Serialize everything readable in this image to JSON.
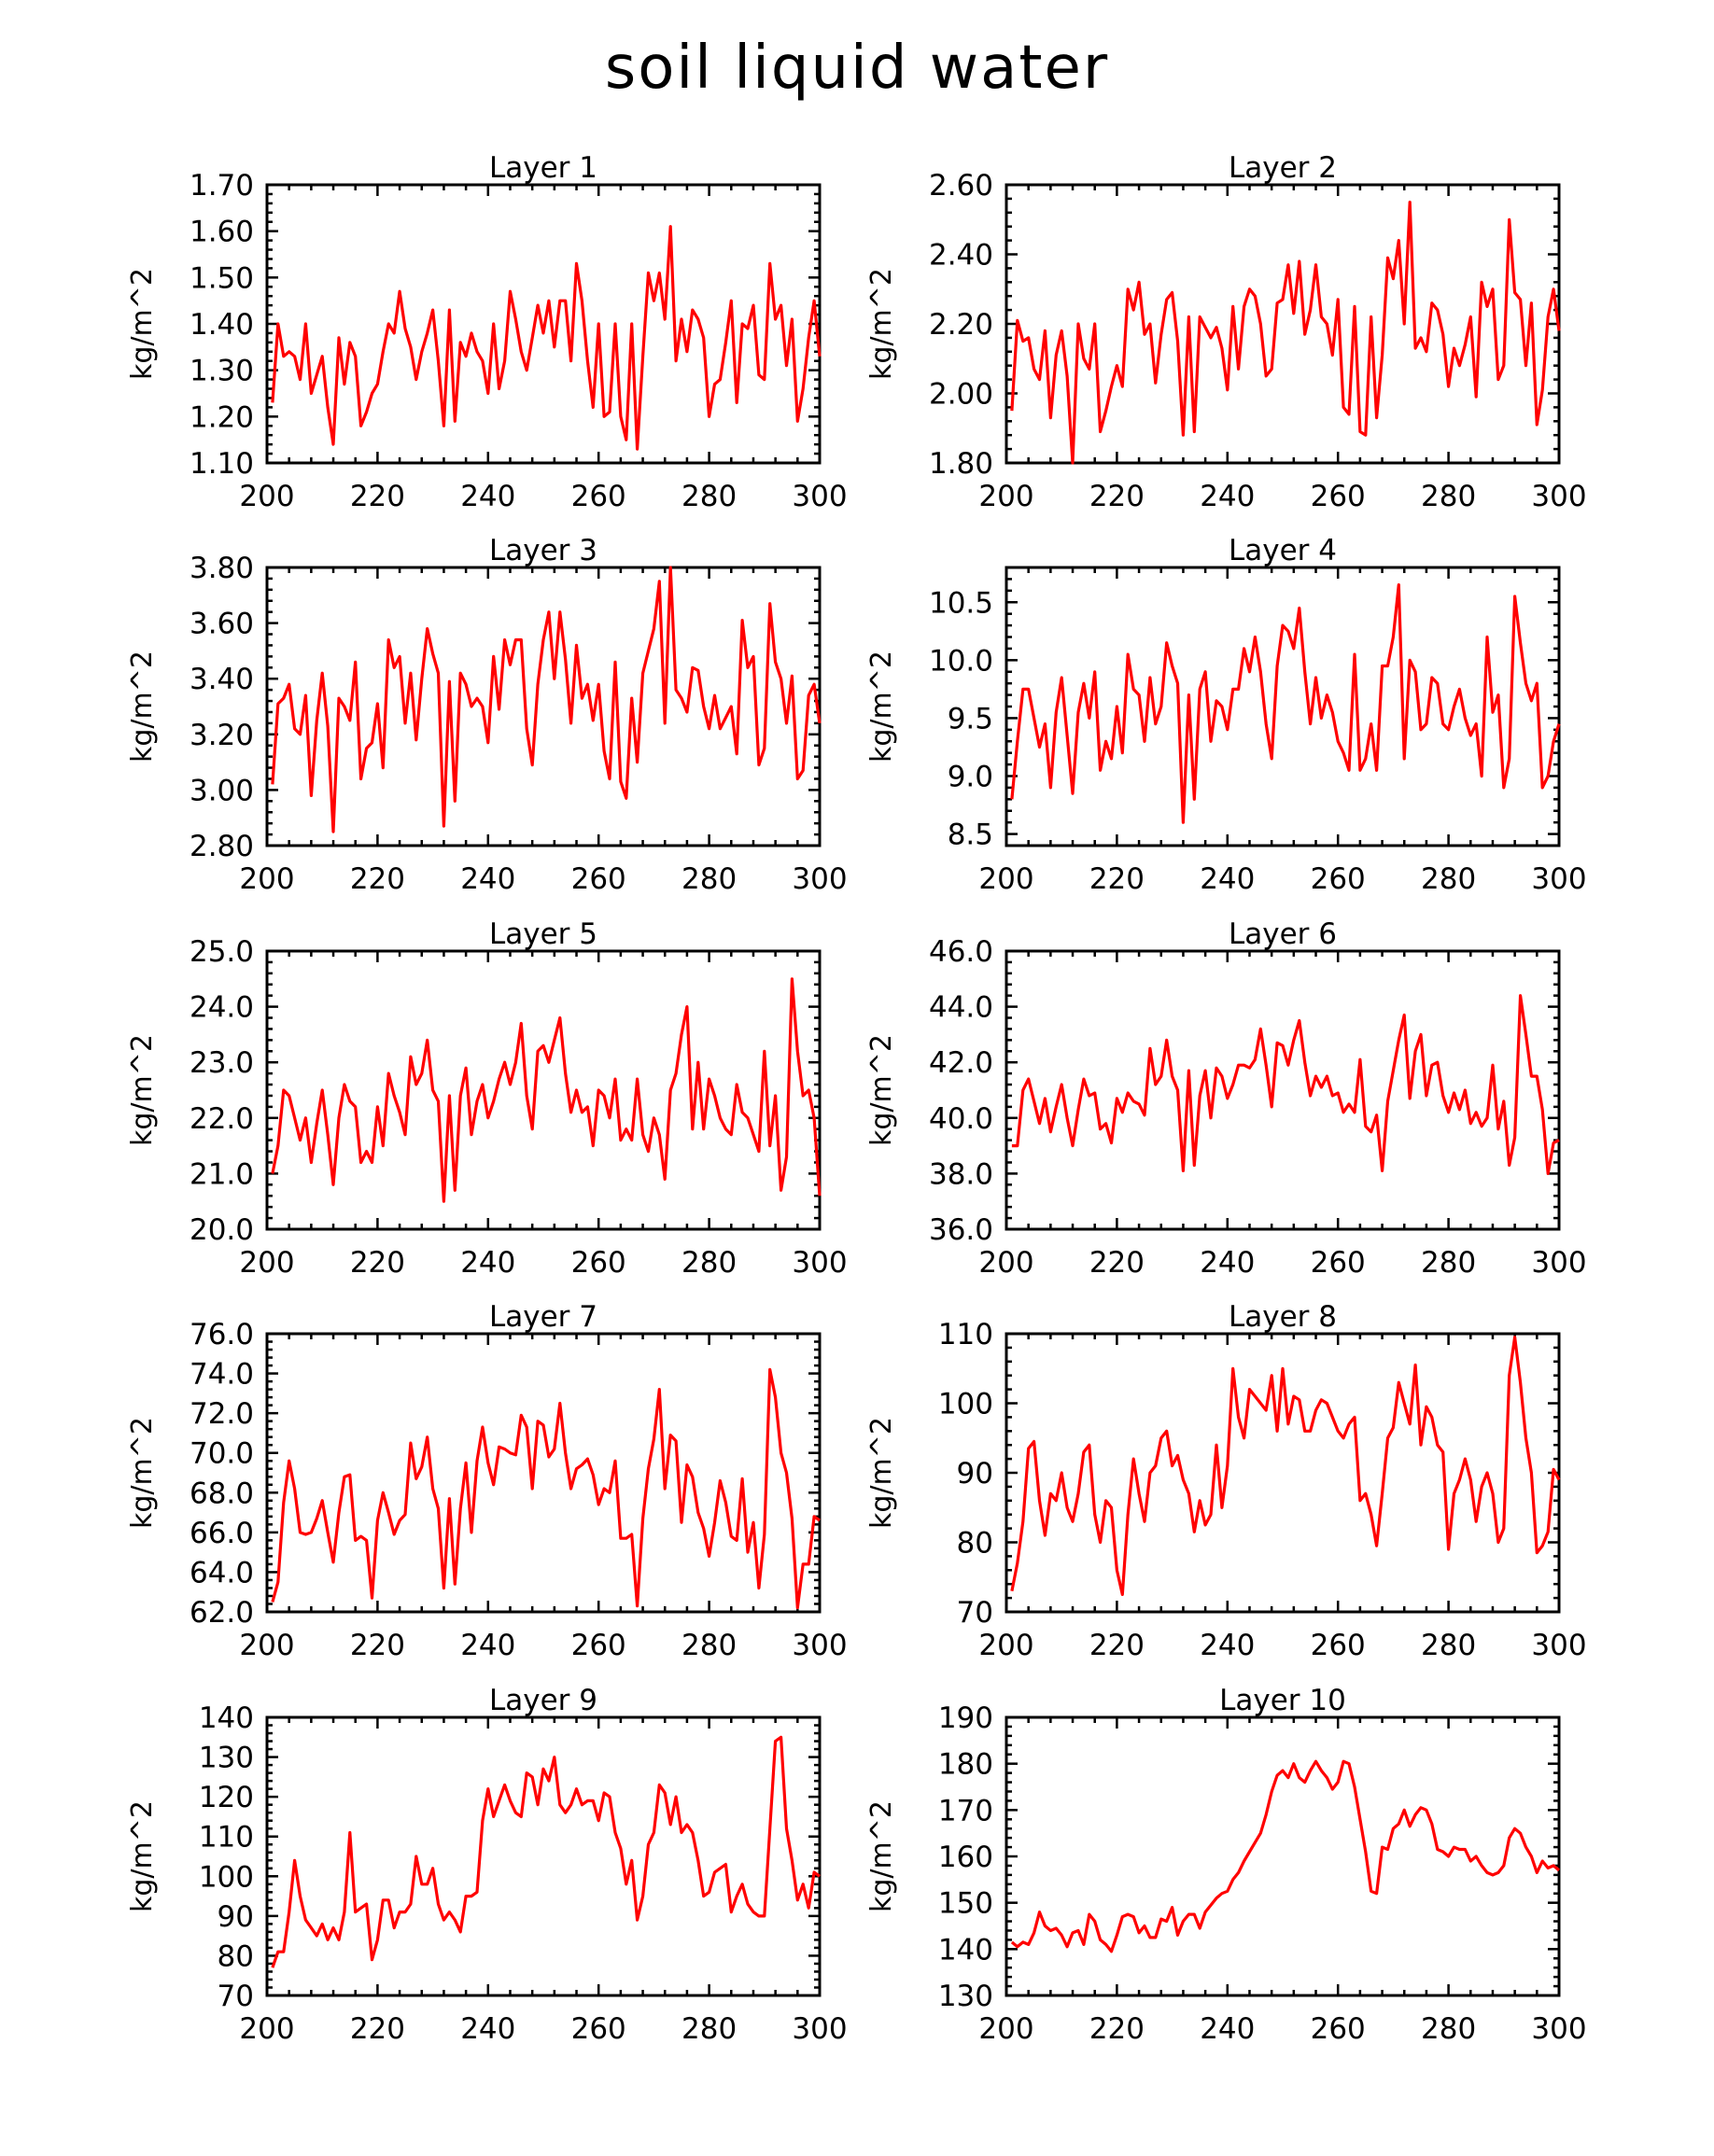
{
  "figure": {
    "title": "soil liquid water"
  },
  "chart_data": [
    {
      "type": "line",
      "title": "Layer 1",
      "ylabel": "kg/m^2",
      "xlim": [
        200,
        300
      ],
      "ylim": [
        1.1,
        1.7
      ],
      "xticks": [
        "200",
        "220",
        "240",
        "260",
        "280",
        "300"
      ],
      "yticks": [
        "1.10",
        "1.20",
        "1.30",
        "1.40",
        "1.50",
        "1.60",
        "1.70"
      ],
      "x_start": 201,
      "x_step": 1,
      "values": [
        1.23,
        1.4,
        1.33,
        1.34,
        1.33,
        1.28,
        1.4,
        1.25,
        1.29,
        1.33,
        1.22,
        1.14,
        1.37,
        1.27,
        1.36,
        1.33,
        1.18,
        1.21,
        1.25,
        1.27,
        1.34,
        1.4,
        1.38,
        1.47,
        1.39,
        1.35,
        1.28,
        1.34,
        1.38,
        1.43,
        1.32,
        1.18,
        1.43,
        1.19,
        1.36,
        1.33,
        1.38,
        1.34,
        1.32,
        1.25,
        1.4,
        1.26,
        1.32,
        1.47,
        1.41,
        1.34,
        1.3,
        1.37,
        1.44,
        1.38,
        1.45,
        1.35,
        1.45,
        1.45,
        1.32,
        1.53,
        1.45,
        1.32,
        1.22,
        1.4,
        1.2,
        1.21,
        1.4,
        1.2,
        1.15,
        1.4,
        1.13,
        1.33,
        1.51,
        1.45,
        1.51,
        1.41,
        1.61,
        1.32,
        1.41,
        1.34,
        1.43,
        1.41,
        1.37,
        1.2,
        1.27,
        1.28,
        1.36,
        1.45,
        1.23,
        1.4,
        1.39,
        1.44,
        1.29,
        1.28,
        1.53,
        1.41,
        1.44,
        1.31,
        1.41,
        1.19,
        1.26,
        1.37,
        1.45,
        1.33
      ]
    },
    {
      "type": "line",
      "title": "Layer 2",
      "ylabel": "kg/m^2",
      "xlim": [
        200,
        300
      ],
      "ylim": [
        1.8,
        2.6
      ],
      "xticks": [
        "200",
        "220",
        "240",
        "260",
        "280",
        "300"
      ],
      "yticks": [
        "1.80",
        "2.00",
        "2.20",
        "2.40",
        "2.60"
      ],
      "x_start": 201,
      "x_step": 1,
      "values": [
        1.95,
        2.21,
        2.15,
        2.16,
        2.07,
        2.04,
        2.18,
        1.93,
        2.11,
        2.18,
        2.05,
        1.8,
        2.2,
        2.1,
        2.07,
        2.2,
        1.89,
        1.95,
        2.02,
        2.08,
        2.02,
        2.3,
        2.24,
        2.32,
        2.17,
        2.2,
        2.03,
        2.17,
        2.27,
        2.29,
        2.15,
        1.88,
        2.22,
        1.89,
        2.22,
        2.19,
        2.16,
        2.19,
        2.13,
        2.01,
        2.25,
        2.07,
        2.25,
        2.3,
        2.28,
        2.2,
        2.05,
        2.07,
        2.26,
        2.27,
        2.37,
        2.23,
        2.38,
        2.17,
        2.24,
        2.37,
        2.22,
        2.2,
        2.11,
        2.27,
        1.96,
        1.94,
        2.25,
        1.89,
        1.88,
        2.22,
        1.93,
        2.11,
        2.39,
        2.33,
        2.44,
        2.2,
        2.55,
        2.13,
        2.16,
        2.12,
        2.26,
        2.24,
        2.17,
        2.02,
        2.13,
        2.08,
        2.14,
        2.22,
        1.99,
        2.32,
        2.25,
        2.3,
        2.04,
        2.08,
        2.5,
        2.29,
        2.27,
        2.08,
        2.26,
        1.91,
        2.01,
        2.22,
        2.3,
        2.18
      ]
    },
    {
      "type": "line",
      "title": "Layer 3",
      "ylabel": "kg/m^2",
      "xlim": [
        200,
        300
      ],
      "ylim": [
        2.8,
        3.8
      ],
      "xticks": [
        "200",
        "220",
        "240",
        "260",
        "280",
        "300"
      ],
      "yticks": [
        "2.80",
        "3.00",
        "3.20",
        "3.40",
        "3.60",
        "3.80"
      ],
      "x_start": 201,
      "x_step": 1,
      "values": [
        3.02,
        3.31,
        3.33,
        3.38,
        3.22,
        3.2,
        3.34,
        2.98,
        3.25,
        3.42,
        3.23,
        2.85,
        3.33,
        3.3,
        3.25,
        3.46,
        3.04,
        3.15,
        3.17,
        3.31,
        3.08,
        3.54,
        3.44,
        3.48,
        3.24,
        3.42,
        3.18,
        3.4,
        3.58,
        3.49,
        3.42,
        2.87,
        3.39,
        2.96,
        3.42,
        3.38,
        3.3,
        3.33,
        3.3,
        3.17,
        3.48,
        3.29,
        3.54,
        3.45,
        3.54,
        3.54,
        3.22,
        3.09,
        3.38,
        3.54,
        3.64,
        3.4,
        3.64,
        3.47,
        3.24,
        3.52,
        3.33,
        3.38,
        3.25,
        3.38,
        3.14,
        3.04,
        3.46,
        3.03,
        2.97,
        3.33,
        3.1,
        3.42,
        3.5,
        3.58,
        3.75,
        3.24,
        3.8,
        3.36,
        3.33,
        3.28,
        3.44,
        3.43,
        3.3,
        3.22,
        3.34,
        3.22,
        3.26,
        3.3,
        3.13,
        3.61,
        3.44,
        3.48,
        3.09,
        3.15,
        3.67,
        3.46,
        3.4,
        3.24,
        3.41,
        3.04,
        3.07,
        3.34,
        3.38,
        3.24
      ]
    },
    {
      "type": "line",
      "title": "Layer 4",
      "ylabel": "kg/m^2",
      "xlim": [
        200,
        300
      ],
      "ylim": [
        8.4,
        10.8
      ],
      "xticks": [
        "200",
        "220",
        "240",
        "260",
        "280",
        "300"
      ],
      "yticks": [
        "8.5",
        "9.0",
        "9.5",
        "10.0",
        "10.5"
      ],
      "x_start": 201,
      "x_step": 1,
      "values": [
        8.8,
        9.3,
        9.75,
        9.75,
        9.5,
        9.25,
        9.45,
        8.9,
        9.55,
        9.85,
        9.35,
        8.85,
        9.55,
        9.8,
        9.5,
        9.9,
        9.05,
        9.3,
        9.15,
        9.6,
        9.2,
        10.05,
        9.75,
        9.7,
        9.3,
        9.85,
        9.45,
        9.6,
        10.15,
        9.95,
        9.8,
        8.6,
        9.7,
        8.8,
        9.75,
        9.9,
        9.3,
        9.65,
        9.6,
        9.4,
        9.75,
        9.75,
        10.1,
        9.9,
        10.2,
        9.9,
        9.45,
        9.15,
        9.95,
        10.3,
        10.25,
        10.1,
        10.45,
        9.9,
        9.45,
        9.85,
        9.5,
        9.7,
        9.55,
        9.3,
        9.2,
        9.05,
        10.05,
        9.05,
        9.15,
        9.45,
        9.05,
        9.95,
        9.95,
        10.2,
        10.65,
        9.15,
        10.0,
        9.9,
        9.4,
        9.45,
        9.85,
        9.8,
        9.45,
        9.4,
        9.6,
        9.75,
        9.5,
        9.35,
        9.45,
        9.0,
        10.2,
        9.55,
        9.7,
        8.9,
        9.15,
        10.55,
        10.15,
        9.8,
        9.65,
        9.8,
        8.9,
        9.0,
        9.3,
        9.45
      ]
    },
    {
      "type": "line",
      "title": "Layer 5",
      "ylabel": "kg/m^2",
      "xlim": [
        200,
        300
      ],
      "ylim": [
        20.0,
        25.0
      ],
      "xticks": [
        "200",
        "220",
        "240",
        "260",
        "280",
        "300"
      ],
      "yticks": [
        "20.0",
        "21.0",
        "22.0",
        "23.0",
        "24.0",
        "25.0"
      ],
      "x_start": 201,
      "x_step": 1,
      "values": [
        21.0,
        21.5,
        22.5,
        22.4,
        22.0,
        21.6,
        22.0,
        21.2,
        21.9,
        22.5,
        21.7,
        20.8,
        22.0,
        22.6,
        22.3,
        22.2,
        21.2,
        21.4,
        21.2,
        22.2,
        21.5,
        22.8,
        22.4,
        22.1,
        21.7,
        23.1,
        22.6,
        22.8,
        23.4,
        22.5,
        22.3,
        20.5,
        22.4,
        20.7,
        22.4,
        22.9,
        21.7,
        22.3,
        22.6,
        22.0,
        22.3,
        22.7,
        23.0,
        22.6,
        23.0,
        23.7,
        22.4,
        21.8,
        23.2,
        23.3,
        23.0,
        23.4,
        23.8,
        22.8,
        22.1,
        22.5,
        22.1,
        22.2,
        21.5,
        22.5,
        22.4,
        22.0,
        22.7,
        21.6,
        21.8,
        21.6,
        22.7,
        21.7,
        21.4,
        22.0,
        21.7,
        20.9,
        22.5,
        22.8,
        23.5,
        24.0,
        21.8,
        23.0,
        21.8,
        22.7,
        22.4,
        22.0,
        21.8,
        21.7,
        22.6,
        22.1,
        22.0,
        21.7,
        21.4,
        23.2,
        21.5,
        22.4,
        20.7,
        21.3,
        24.5,
        23.2,
        22.4,
        22.5,
        22.0,
        20.6
      ]
    },
    {
      "type": "line",
      "title": "Layer 6",
      "ylabel": "kg/m^2",
      "xlim": [
        200,
        300
      ],
      "ylim": [
        36.0,
        46.0
      ],
      "xticks": [
        "200",
        "220",
        "240",
        "260",
        "280",
        "300"
      ],
      "yticks": [
        "36.0",
        "38.0",
        "40.0",
        "42.0",
        "44.0",
        "46.0"
      ],
      "x_start": 201,
      "x_step": 1,
      "values": [
        39.0,
        39.0,
        41.0,
        41.4,
        40.6,
        39.8,
        40.7,
        39.5,
        40.4,
        41.2,
        40.0,
        39.0,
        40.3,
        41.4,
        40.8,
        40.9,
        39.6,
        39.8,
        39.1,
        40.7,
        40.2,
        40.9,
        40.6,
        40.5,
        40.1,
        42.5,
        41.2,
        41.5,
        42.8,
        41.5,
        41.0,
        38.1,
        41.7,
        38.3,
        40.8,
        41.7,
        40.0,
        41.8,
        41.5,
        40.7,
        41.2,
        41.9,
        41.9,
        41.8,
        42.1,
        43.2,
        41.9,
        40.4,
        42.7,
        42.6,
        41.9,
        42.8,
        43.5,
        42.0,
        40.8,
        41.5,
        41.1,
        41.5,
        40.8,
        40.9,
        40.2,
        40.5,
        40.2,
        42.1,
        39.7,
        39.5,
        40.1,
        38.1,
        40.6,
        41.7,
        42.8,
        43.7,
        40.7,
        42.4,
        43.0,
        40.8,
        41.9,
        42.0,
        40.8,
        40.2,
        40.9,
        40.3,
        41.0,
        39.8,
        40.2,
        39.7,
        40.0,
        41.9,
        39.6,
        40.6,
        38.3,
        39.3,
        44.4,
        43.0,
        41.5,
        41.5,
        40.3,
        38.0,
        39.1,
        39.2
      ]
    },
    {
      "type": "line",
      "title": "Layer 7",
      "ylabel": "kg/m^2",
      "xlim": [
        200,
        300
      ],
      "ylim": [
        62.0,
        76.0
      ],
      "xticks": [
        "200",
        "220",
        "240",
        "260",
        "280",
        "300"
      ],
      "yticks": [
        "62.0",
        "64.0",
        "66.0",
        "68.0",
        "70.0",
        "72.0",
        "74.0",
        "76.0"
      ],
      "x_start": 201,
      "x_step": 1,
      "values": [
        62.5,
        63.5,
        67.5,
        69.6,
        68.2,
        66.0,
        65.9,
        66.0,
        66.7,
        67.6,
        66.0,
        64.5,
        67.0,
        68.8,
        68.9,
        65.6,
        65.8,
        65.6,
        62.7,
        66.6,
        68.0,
        67.0,
        65.9,
        66.6,
        66.9,
        70.5,
        68.7,
        69.3,
        70.8,
        68.2,
        67.2,
        63.2,
        67.7,
        63.4,
        67.2,
        69.5,
        66.0,
        69.6,
        71.3,
        69.5,
        68.4,
        70.3,
        70.2,
        70.0,
        69.9,
        71.9,
        71.3,
        68.2,
        71.6,
        71.4,
        69.8,
        70.2,
        72.5,
        70.0,
        68.2,
        69.2,
        69.4,
        69.7,
        68.9,
        67.4,
        68.2,
        68.0,
        69.6,
        65.7,
        65.7,
        65.9,
        62.3,
        66.7,
        69.2,
        70.7,
        73.2,
        68.2,
        70.9,
        70.6,
        66.5,
        69.4,
        68.8,
        67.0,
        66.2,
        64.8,
        66.5,
        68.6,
        67.5,
        65.8,
        65.6,
        68.7,
        65.0,
        66.5,
        63.2,
        65.9,
        74.2,
        72.8,
        70.0,
        69.0,
        66.7,
        62.2,
        64.4,
        64.4,
        66.8,
        66.6
      ]
    },
    {
      "type": "line",
      "title": "Layer 8",
      "ylabel": "kg/m^2",
      "xlim": [
        200,
        300
      ],
      "ylim": [
        70,
        110
      ],
      "xticks": [
        "200",
        "220",
        "240",
        "260",
        "280",
        "300"
      ],
      "yticks": [
        "70",
        "80",
        "90",
        "100",
        "110"
      ],
      "x_start": 201,
      "x_step": 1,
      "values": [
        73,
        77,
        83,
        93.5,
        94.5,
        86,
        81,
        87,
        86,
        90,
        85,
        83,
        87,
        93,
        94,
        84,
        80,
        86,
        85,
        76,
        72.5,
        84,
        92,
        87,
        83,
        90,
        91,
        95,
        96,
        91,
        92.5,
        89,
        87,
        81.5,
        86,
        82.5,
        84,
        94,
        85,
        91,
        105,
        98,
        95,
        102,
        101,
        100,
        99,
        104,
        96,
        105,
        97,
        101,
        100.5,
        96,
        96,
        99,
        100.5,
        100,
        98,
        96,
        95,
        97,
        98,
        86,
        87,
        84,
        79.5,
        87,
        95,
        96.5,
        103,
        100,
        97,
        105.5,
        94,
        99.5,
        98,
        94,
        93,
        79,
        87,
        89,
        92,
        89,
        83,
        88,
        90,
        87,
        80,
        82,
        104,
        109.5,
        103,
        95,
        90,
        78.5,
        79.5,
        81.5,
        90.5,
        89
      ]
    },
    {
      "type": "line",
      "title": "Layer 9",
      "ylabel": "kg/m^2",
      "xlim": [
        200,
        300
      ],
      "ylim": [
        70,
        140
      ],
      "xticks": [
        "200",
        "220",
        "240",
        "260",
        "280",
        "300"
      ],
      "yticks": [
        "70",
        "80",
        "90",
        "100",
        "110",
        "120",
        "130",
        "140"
      ],
      "x_start": 201,
      "x_step": 1,
      "values": [
        77,
        81,
        81,
        91,
        104,
        95,
        89,
        87,
        85,
        88,
        84,
        87,
        84,
        91,
        111,
        91,
        92,
        93,
        79,
        84,
        94,
        94,
        87,
        91,
        91,
        93,
        105,
        98,
        98,
        102,
        93,
        89,
        91,
        89,
        86,
        95,
        95,
        96,
        114,
        122,
        115,
        119,
        123,
        119,
        116,
        115,
        126,
        125,
        118,
        127,
        124,
        130,
        118,
        116,
        118,
        122,
        118,
        119,
        119,
        114,
        121,
        120,
        111,
        107,
        98,
        104,
        89,
        95,
        108,
        111,
        123,
        121,
        113,
        120,
        111,
        113,
        111,
        104,
        95,
        96,
        101,
        102,
        103,
        91,
        95,
        98,
        93,
        91,
        90,
        90,
        112,
        134,
        135,
        112,
        104,
        94,
        98,
        92,
        101,
        100
      ]
    },
    {
      "type": "line",
      "title": "Layer 10",
      "ylabel": "kg/m^2",
      "xlim": [
        200,
        300
      ],
      "ylim": [
        130,
        190
      ],
      "xticks": [
        "200",
        "220",
        "240",
        "260",
        "280",
        "300"
      ],
      "yticks": [
        "130",
        "140",
        "150",
        "160",
        "170",
        "180",
        "190"
      ],
      "x_start": 201,
      "x_step": 1,
      "values": [
        141.5,
        140.5,
        141.5,
        141,
        143.5,
        148,
        145,
        144,
        144.5,
        143,
        140.5,
        143.5,
        144,
        141,
        147.5,
        146,
        142,
        141,
        139.5,
        143,
        147,
        147.5,
        147,
        143.5,
        145,
        142.5,
        142.5,
        146.5,
        146,
        149,
        143,
        146,
        147.5,
        147.5,
        144.5,
        148,
        149.5,
        151,
        152,
        152.5,
        155,
        156.5,
        159,
        161,
        163,
        165,
        169,
        174,
        177.5,
        178.5,
        177,
        180,
        177,
        176,
        178.5,
        180.5,
        178.5,
        177,
        174.5,
        176,
        180.5,
        180,
        175,
        168,
        161,
        152.5,
        152,
        162,
        161.5,
        166,
        167,
        170,
        166.5,
        169,
        170.5,
        170,
        167,
        161.5,
        161,
        160,
        162,
        161.5,
        161.5,
        159,
        160,
        158,
        156.5,
        156,
        156.5,
        158,
        164,
        166,
        165,
        162,
        160,
        156.5,
        159,
        157.5,
        158,
        157
      ]
    }
  ]
}
